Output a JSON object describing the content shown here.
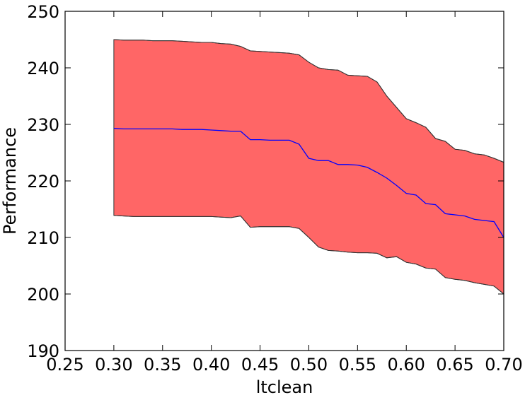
{
  "chart_data": {
    "type": "band-line",
    "xlabel": "ltclean",
    "ylabel": "Performance",
    "x": [
      0.3,
      0.31,
      0.32,
      0.33,
      0.34,
      0.35,
      0.36,
      0.37,
      0.38,
      0.39,
      0.4,
      0.41,
      0.42,
      0.43,
      0.44,
      0.45,
      0.46,
      0.47,
      0.48,
      0.49,
      0.5,
      0.51,
      0.52,
      0.53,
      0.54,
      0.55,
      0.56,
      0.57,
      0.58,
      0.59,
      0.6,
      0.61,
      0.62,
      0.63,
      0.64,
      0.65,
      0.66,
      0.67,
      0.68,
      0.69,
      0.7
    ],
    "values": [
      229.3,
      229.2,
      229.2,
      229.2,
      229.2,
      229.2,
      229.2,
      229.1,
      229.1,
      229.1,
      229.0,
      228.9,
      228.8,
      228.8,
      227.3,
      227.3,
      227.2,
      227.2,
      227.2,
      226.5,
      224.0,
      223.6,
      223.6,
      222.9,
      222.9,
      222.8,
      222.4,
      221.5,
      220.5,
      219.2,
      217.8,
      217.5,
      216.0,
      215.8,
      214.2,
      214.0,
      213.8,
      213.2,
      213.0,
      212.8,
      210.0
    ],
    "color": "#0000ff",
    "band": {
      "upper": [
        245.0,
        244.9,
        244.9,
        244.9,
        244.8,
        244.8,
        244.8,
        244.7,
        244.6,
        244.5,
        244.5,
        244.3,
        244.2,
        243.8,
        243.0,
        242.9,
        242.8,
        242.7,
        242.6,
        242.3,
        241.0,
        240.0,
        239.7,
        239.6,
        238.7,
        238.6,
        238.5,
        237.5,
        235.0,
        233.0,
        231.0,
        230.3,
        229.5,
        227.5,
        227.0,
        225.6,
        225.4,
        224.8,
        224.6,
        224.0,
        223.3
      ],
      "lower": [
        213.9,
        213.8,
        213.7,
        213.7,
        213.7,
        213.7,
        213.7,
        213.7,
        213.7,
        213.7,
        213.7,
        213.6,
        213.5,
        213.8,
        211.8,
        211.9,
        211.9,
        211.9,
        211.9,
        211.6,
        210.0,
        208.3,
        207.7,
        207.6,
        207.4,
        207.3,
        207.3,
        207.2,
        206.4,
        206.6,
        205.6,
        205.3,
        204.6,
        204.4,
        202.9,
        202.6,
        202.4,
        202.0,
        201.7,
        201.4,
        200.0
      ],
      "color": "#ff6666",
      "edgecolor": "#333333"
    },
    "xlim": [
      0.25,
      0.7
    ],
    "xticks": [
      {
        "value": 0.25,
        "label": "0.25"
      },
      {
        "value": 0.3,
        "label": "0.30"
      },
      {
        "value": 0.35,
        "label": "0.35"
      },
      {
        "value": 0.4,
        "label": "0.40"
      },
      {
        "value": 0.45,
        "label": "0.45"
      },
      {
        "value": 0.5,
        "label": "0.50"
      },
      {
        "value": 0.55,
        "label": "0.55"
      },
      {
        "value": 0.6,
        "label": "0.60"
      },
      {
        "value": 0.65,
        "label": "0.65"
      },
      {
        "value": 0.7,
        "label": "0.70"
      }
    ],
    "ylim": [
      190,
      250
    ],
    "yticks": [
      190,
      200,
      210,
      220,
      230,
      240,
      250
    ]
  }
}
